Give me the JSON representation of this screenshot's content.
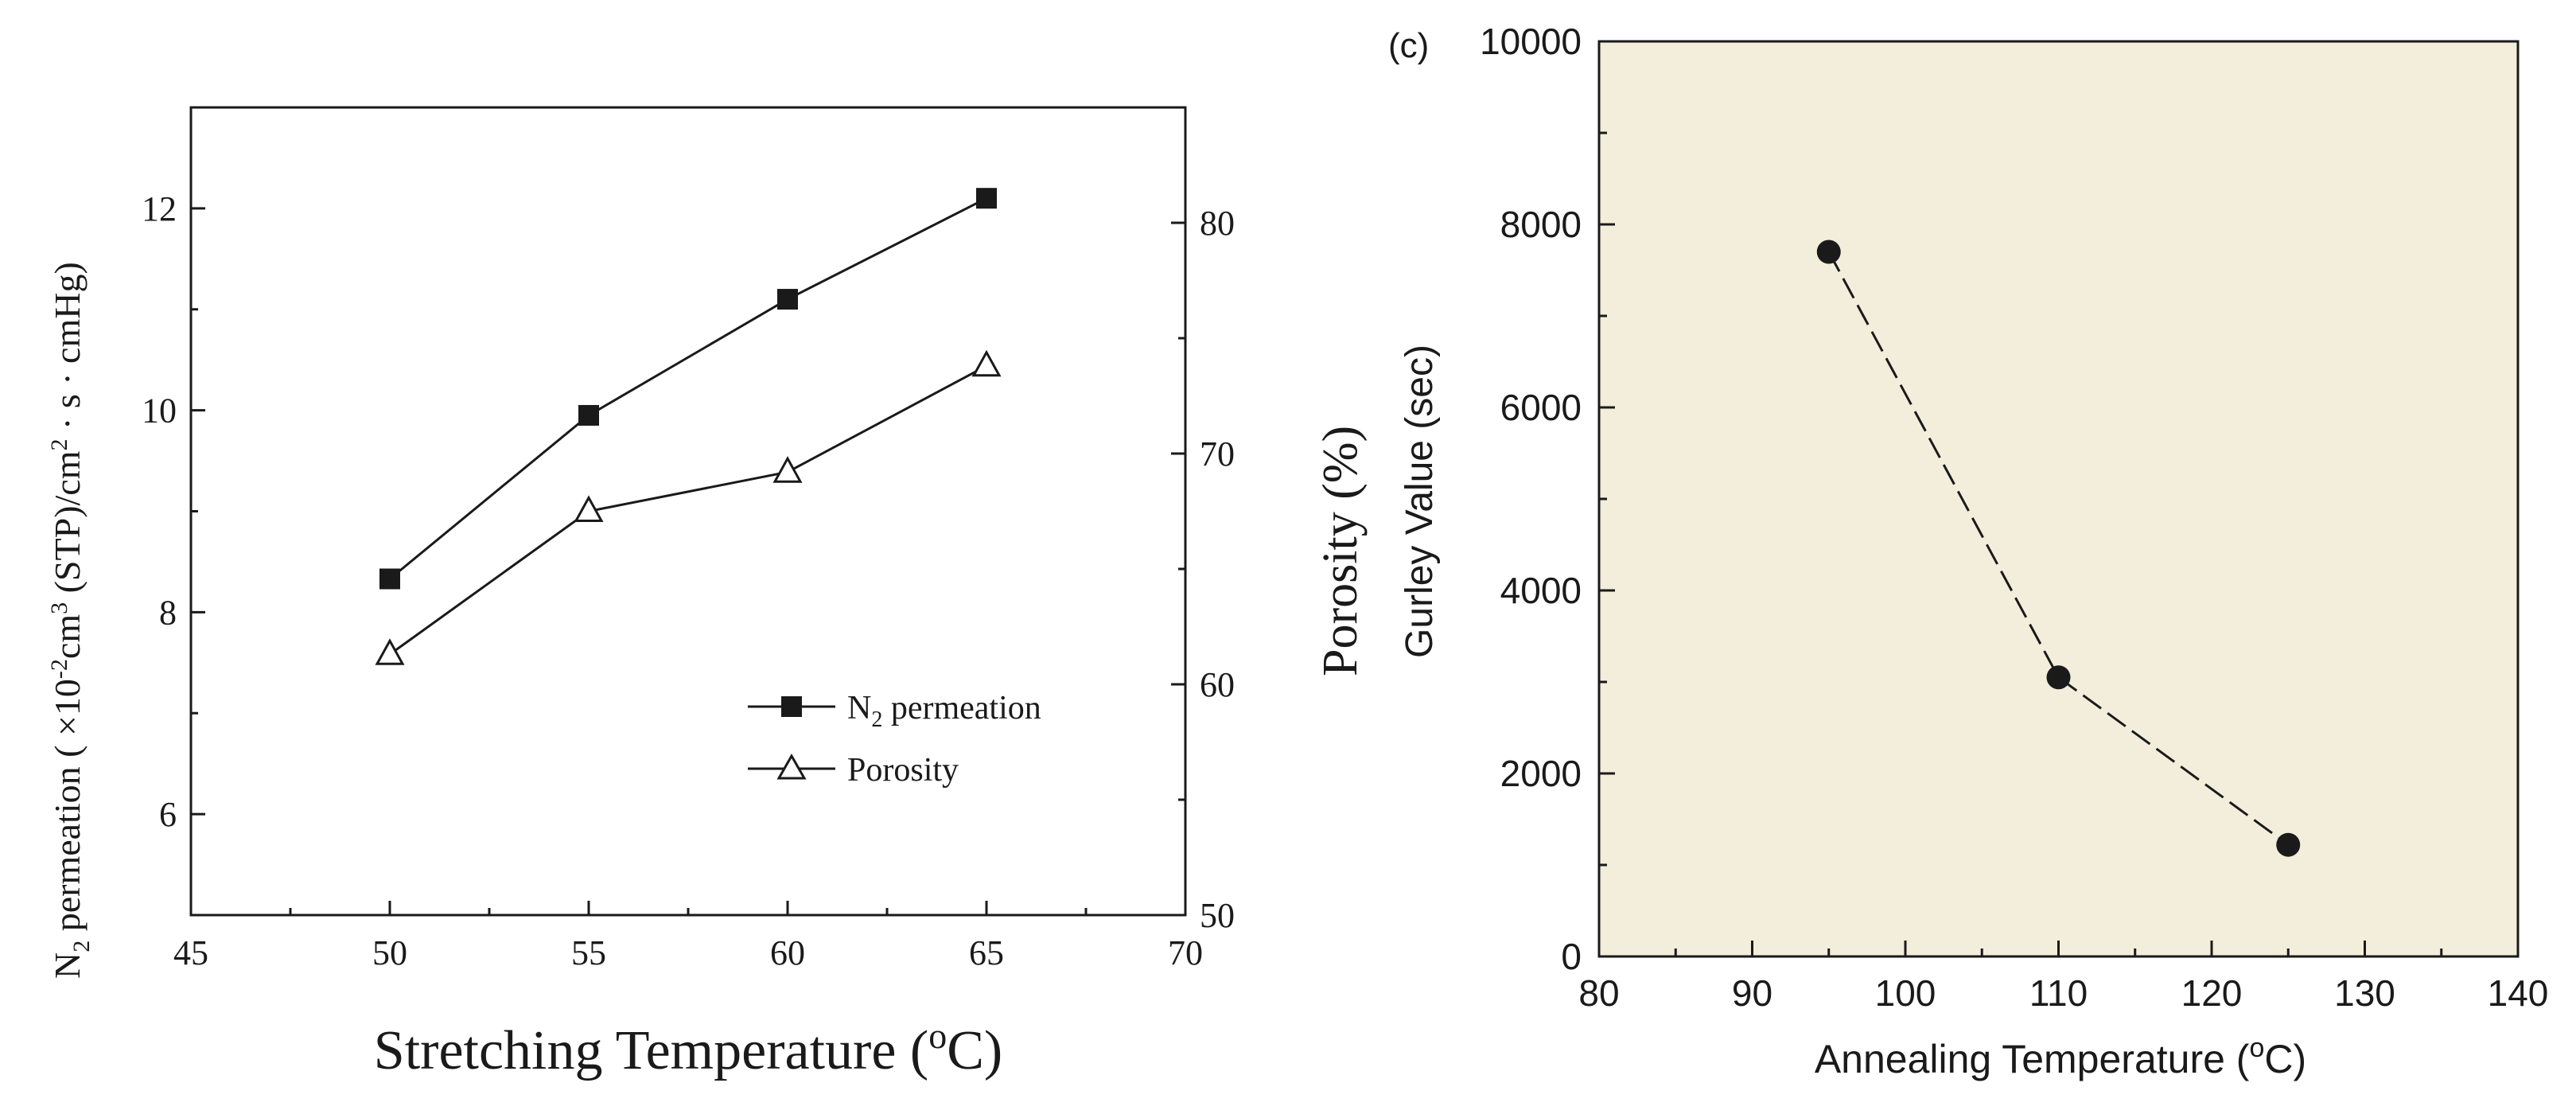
{
  "colors": {
    "ink": "#1a1a1a",
    "panel_right_bg": "#f2eedb",
    "marker_fill": "#1a1a1a",
    "marker_open": "#ffffff"
  },
  "chart_data": [
    {
      "type": "line",
      "title": "",
      "xlabel": "Stretching Temperature (°C)",
      "ylabel_left": "N2 permeation ( ×10⁻²cm³ (STP)/cm² · s · cmHg)",
      "ylabel_right": "Porosity (%)",
      "xlim": [
        45,
        70
      ],
      "ylim_left": [
        5,
        13
      ],
      "ylim_right": [
        50,
        85
      ],
      "x_ticks": [
        45,
        50,
        55,
        60,
        65,
        70
      ],
      "y_left_ticks": [
        6,
        8,
        10,
        12
      ],
      "y_right_ticks": [
        50,
        60,
        70,
        80
      ],
      "grid": false,
      "legend_position": "bottom-right",
      "series": [
        {
          "name": "N2 permeation",
          "axis": "left",
          "marker": "filled-square",
          "x": [
            50,
            55,
            60,
            65
          ],
          "y": [
            8.33,
            9.95,
            11.1,
            12.1
          ]
        },
        {
          "name": "Porosity",
          "axis": "right",
          "marker": "open-triangle",
          "x": [
            50,
            55,
            60,
            65
          ],
          "y": [
            61.3,
            67.5,
            69.2,
            73.8
          ]
        }
      ]
    },
    {
      "type": "line",
      "panel_label": "(c)",
      "title": "",
      "xlabel": "Annealing Temperature (°C)",
      "ylabel": "Gurley Value (sec)",
      "xlim": [
        80,
        140
      ],
      "ylim": [
        0,
        10000
      ],
      "x_ticks": [
        80,
        90,
        100,
        110,
        120,
        130,
        140
      ],
      "y_ticks": [
        0,
        2000,
        4000,
        6000,
        8000,
        10000
      ],
      "grid": false,
      "line_style": "dashed",
      "series": [
        {
          "name": "Gurley Value",
          "marker": "filled-circle",
          "x": [
            95,
            110,
            125
          ],
          "y": [
            7700,
            3050,
            1220
          ]
        }
      ]
    }
  ]
}
